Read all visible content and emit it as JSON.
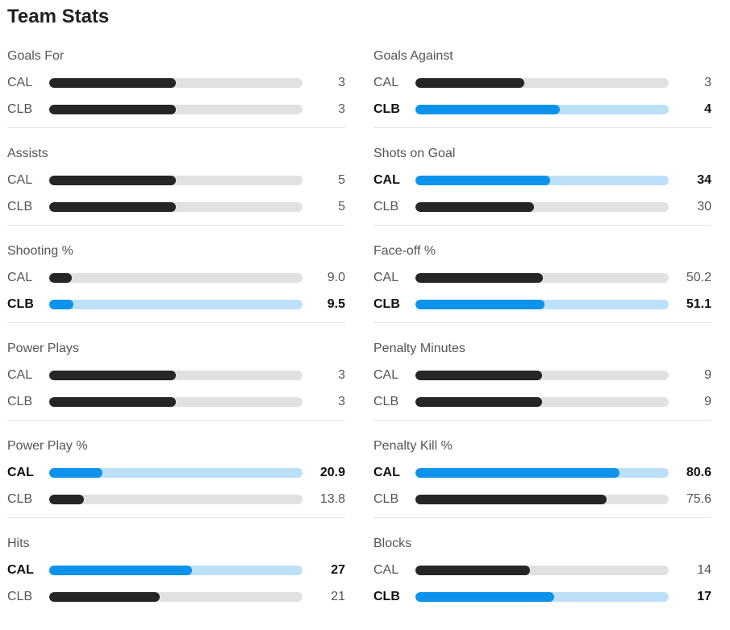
{
  "title": "Team Stats",
  "colors": {
    "leader_fill": "#0d93ec",
    "leader_track": "#bde0f9",
    "normal_fill": "#262626",
    "normal_track": "#e1e1e1"
  },
  "left": [
    {
      "title": "Goals For",
      "rows": [
        {
          "team": "CAL",
          "value": "3",
          "bar": 0.5,
          "lead": false
        },
        {
          "team": "CLB",
          "value": "3",
          "bar": 0.5,
          "lead": false
        }
      ]
    },
    {
      "title": "Assists",
      "rows": [
        {
          "team": "CAL",
          "value": "5",
          "bar": 0.5,
          "lead": false
        },
        {
          "team": "CLB",
          "value": "5",
          "bar": 0.5,
          "lead": false
        }
      ]
    },
    {
      "title": "Shooting %",
      "rows": [
        {
          "team": "CAL",
          "value": "9.0",
          "bar": 0.09,
          "lead": false
        },
        {
          "team": "CLB",
          "value": "9.5",
          "bar": 0.095,
          "lead": true
        }
      ]
    },
    {
      "title": "Power Plays",
      "rows": [
        {
          "team": "CAL",
          "value": "3",
          "bar": 0.5,
          "lead": false
        },
        {
          "team": "CLB",
          "value": "3",
          "bar": 0.5,
          "lead": false
        }
      ]
    },
    {
      "title": "Power Play %",
      "rows": [
        {
          "team": "CAL",
          "value": "20.9",
          "bar": 0.209,
          "lead": true
        },
        {
          "team": "CLB",
          "value": "13.8",
          "bar": 0.138,
          "lead": false
        }
      ]
    },
    {
      "title": "Hits",
      "rows": [
        {
          "team": "CAL",
          "value": "27",
          "bar": 0.5625,
          "lead": true
        },
        {
          "team": "CLB",
          "value": "21",
          "bar": 0.4375,
          "lead": false
        }
      ]
    }
  ],
  "right": [
    {
      "title": "Goals Against",
      "rows": [
        {
          "team": "CAL",
          "value": "3",
          "bar": 0.4286,
          "lead": false
        },
        {
          "team": "CLB",
          "value": "4",
          "bar": 0.5714,
          "lead": true
        }
      ]
    },
    {
      "title": "Shots on Goal",
      "rows": [
        {
          "team": "CAL",
          "value": "34",
          "bar": 0.53125,
          "lead": true
        },
        {
          "team": "CLB",
          "value": "30",
          "bar": 0.46875,
          "lead": false
        }
      ]
    },
    {
      "title": "Face-off %",
      "rows": [
        {
          "team": "CAL",
          "value": "50.2",
          "bar": 0.502,
          "lead": false
        },
        {
          "team": "CLB",
          "value": "51.1",
          "bar": 0.511,
          "lead": true
        }
      ]
    },
    {
      "title": "Penalty Minutes",
      "rows": [
        {
          "team": "CAL",
          "value": "9",
          "bar": 0.5,
          "lead": false
        },
        {
          "team": "CLB",
          "value": "9",
          "bar": 0.5,
          "lead": false
        }
      ]
    },
    {
      "title": "Penalty Kill %",
      "rows": [
        {
          "team": "CAL",
          "value": "80.6",
          "bar": 0.806,
          "lead": true
        },
        {
          "team": "CLB",
          "value": "75.6",
          "bar": 0.756,
          "lead": false
        }
      ]
    },
    {
      "title": "Blocks",
      "rows": [
        {
          "team": "CAL",
          "value": "14",
          "bar": 0.4516,
          "lead": false
        },
        {
          "team": "CLB",
          "value": "17",
          "bar": 0.5484,
          "lead": true
        }
      ]
    }
  ]
}
